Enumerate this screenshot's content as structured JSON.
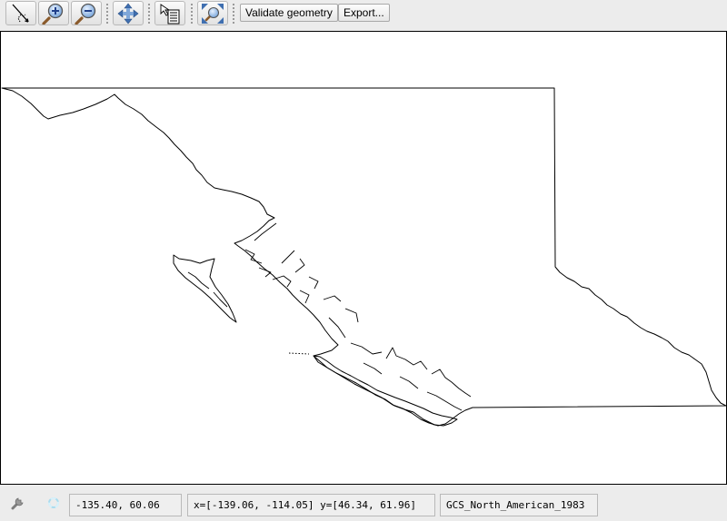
{
  "toolbar": {
    "tools": [
      {
        "icon": "arrow-select-icon"
      },
      {
        "icon": "zoom-in-icon"
      },
      {
        "icon": "zoom-out-icon"
      },
      {
        "icon": "pan-icon"
      },
      {
        "icon": "info-icon"
      },
      {
        "icon": "zoom-extent-icon"
      }
    ],
    "validate_label": "Validate geometry",
    "export_label": "Export..."
  },
  "status": {
    "tool_icon": "wrench-icon",
    "busy_icon": "busy-spinner-icon",
    "cursor_coords": "-135.40, 60.06",
    "extent": "x=[-139.06, -114.05] y=[46.34, 61.96]",
    "crs": "GCS_North_American_1983"
  },
  "map": {
    "geometry_stroke": "#000000",
    "background": "#ffffff"
  }
}
